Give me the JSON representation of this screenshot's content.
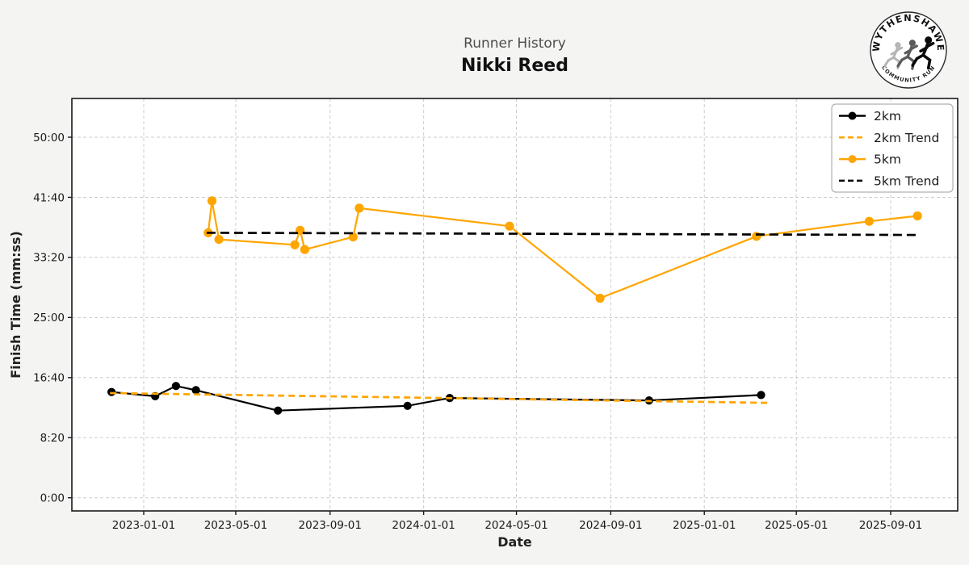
{
  "header": {
    "subtitle": "Runner History",
    "title": "Nikki Reed"
  },
  "logo": {
    "text_top": "WYTHENSHAWE",
    "text_bottom": "COMMUNITY RUN"
  },
  "colors": {
    "figure_bg": "#f4f4f3",
    "plot_bg": "#ffffff",
    "grid": "#cdcdcd",
    "spine": "#1a1a1a",
    "orange": "#FFA500",
    "black": "#000000",
    "subtitle_gray": "#4d4d4d",
    "tick_text": "#1a1a1a",
    "legend_border": "#b0b0b0"
  },
  "chart_data": {
    "type": "line",
    "title": "Nikki Reed",
    "suptitle": "Runner History",
    "xlabel": "Date",
    "ylabel": "Finish Time (mm:ss)",
    "grid": true,
    "legend_position": "upper right",
    "x_tick_labels": [
      "2023-01-01",
      "2023-05-01",
      "2023-09-01",
      "2024-01-01",
      "2024-05-01",
      "2024-09-01",
      "2025-01-01",
      "2025-05-01",
      "2025-09-01"
    ],
    "y_ticks": [
      {
        "label": "0:00",
        "seconds": 0
      },
      {
        "label": "8:20",
        "seconds": 500
      },
      {
        "label": "16:40",
        "seconds": 1000
      },
      {
        "label": "25:00",
        "seconds": 1500
      },
      {
        "label": "33:20",
        "seconds": 2000
      },
      {
        "label": "41:40",
        "seconds": 2500
      },
      {
        "label": "50:00",
        "seconds": 3000
      }
    ],
    "xlim": [
      "2022-09-30",
      "2025-11-27"
    ],
    "ylim_seconds": [
      -110,
      3322
    ],
    "series": [
      {
        "name": "2km",
        "color": "#000000",
        "line": "solid",
        "marker": "circle",
        "points": [
          {
            "date": "2022-11-20",
            "time": "14:40"
          },
          {
            "date": "2023-01-16",
            "time": "14:05"
          },
          {
            "date": "2023-02-12",
            "time": "15:30"
          },
          {
            "date": "2023-03-10",
            "time": "14:55"
          },
          {
            "date": "2023-06-25",
            "time": "12:05"
          },
          {
            "date": "2023-12-11",
            "time": "12:45"
          },
          {
            "date": "2024-02-04",
            "time": "13:50"
          },
          {
            "date": "2024-10-21",
            "time": "13:30"
          },
          {
            "date": "2025-03-16",
            "time": "14:15"
          }
        ]
      },
      {
        "name": "2km Trend",
        "color": "#FFA500",
        "line": "dashed",
        "marker": "none",
        "points": [
          {
            "date": "2022-11-18",
            "time": "14:31"
          },
          {
            "date": "2025-03-24",
            "time": "13:10"
          }
        ]
      },
      {
        "name": "5km",
        "color": "#FFA500",
        "line": "solid",
        "marker": "circle",
        "points": [
          {
            "date": "2023-03-26",
            "time": "36:45"
          },
          {
            "date": "2023-03-31",
            "time": "41:10"
          },
          {
            "date": "2023-04-09",
            "time": "35:50"
          },
          {
            "date": "2023-07-17",
            "time": "35:05"
          },
          {
            "date": "2023-07-24",
            "time": "37:05"
          },
          {
            "date": "2023-07-30",
            "time": "34:25"
          },
          {
            "date": "2023-10-01",
            "time": "36:10"
          },
          {
            "date": "2023-10-09",
            "time": "40:10"
          },
          {
            "date": "2024-04-22",
            "time": "37:40"
          },
          {
            "date": "2024-08-18",
            "time": "27:40"
          },
          {
            "date": "2025-03-10",
            "time": "36:15"
          },
          {
            "date": "2025-08-04",
            "time": "38:20"
          },
          {
            "date": "2025-10-06",
            "time": "39:05"
          }
        ]
      },
      {
        "name": "5km Trend",
        "color": "#000000",
        "line": "dashed",
        "marker": "none",
        "points": [
          {
            "date": "2023-03-24",
            "time": "36:45"
          },
          {
            "date": "2025-10-06",
            "time": "36:27"
          }
        ]
      }
    ],
    "legend_entries": [
      "2km",
      "2km Trend",
      "5km",
      "5km Trend"
    ]
  }
}
